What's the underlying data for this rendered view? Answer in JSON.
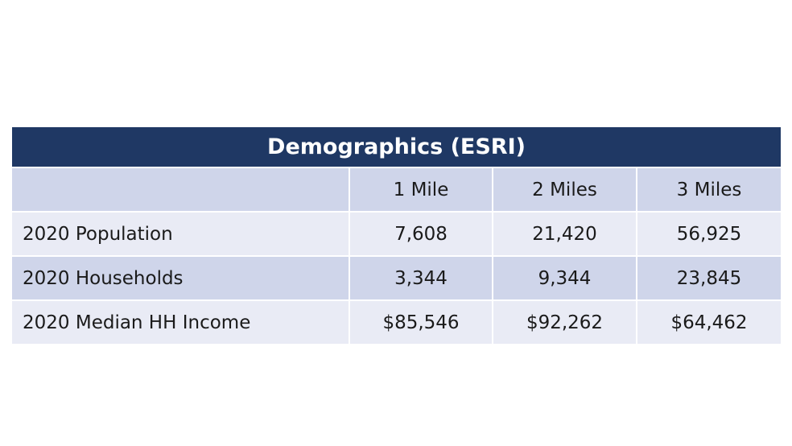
{
  "table": {
    "title": "Demographics (ESRI)",
    "columns": [
      "",
      "1 Mile",
      "2 Miles",
      "3 Miles"
    ],
    "rows": [
      {
        "label": "2020 Population",
        "values": [
          "7,608",
          "21,420",
          "56,925"
        ]
      },
      {
        "label": "2020 Households",
        "values": [
          "3,344",
          "9,344",
          "23,845"
        ]
      },
      {
        "label": "2020 Median HH Income",
        "values": [
          "$85,546",
          "$92,262",
          "$64,462"
        ]
      }
    ],
    "colors": {
      "title_bg": "#1f3864",
      "title_text": "#ffffff",
      "band_dark": "#cfd5ea",
      "band_light": "#e9ebf5"
    }
  }
}
